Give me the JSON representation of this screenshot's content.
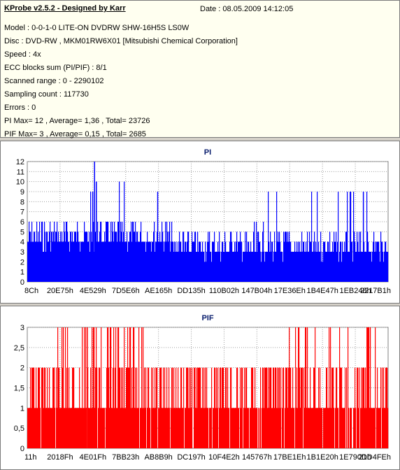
{
  "header": {
    "title": "KProbe v2.5.2 - Designed by Karr",
    "date": "Date : 08.05.2009 14:12:05",
    "lines": [
      "Model : 0-0-1-0 LITE-ON DVDRW SHW-16H5S  LS0W",
      "Disc : DVD-RW , MKM01RW6X01 [Mitsubishi Chemical Corporation]",
      "Speed : 4x",
      "ECC blocks sum (PI/PIF) : 8/1",
      "Scanned range : 0 - 2290102",
      "Sampling count : 117730",
      "Errors : 0",
      "PI Max= 12 , Average= 1,36 , Total= 23726",
      "PIF Max= 3 , Average= 0,15 , Total= 2685"
    ]
  },
  "chart_data": [
    {
      "type": "bar",
      "title": "PI",
      "color": "#0000ff",
      "ylim": [
        0,
        12
      ],
      "yticks": [
        "0",
        "1",
        "2",
        "3",
        "4",
        "5",
        "6",
        "7",
        "8",
        "9",
        "10",
        "11",
        "12"
      ],
      "xticks": [
        "8Ch",
        "20E75h",
        "4E529h",
        "7D5E6h",
        "AE165h",
        "DD135h",
        "110B02h",
        "147B04h",
        "17E36Eh",
        "1B4E47h",
        "1EB248h",
        "2217B1h"
      ],
      "x_range": [
        140,
        2290102
      ],
      "grid": true,
      "profile": [
        {
          "x_frac": 0.0,
          "typical": 4,
          "peak": 6
        },
        {
          "x_frac": 0.18,
          "typical": 4,
          "peak": 9
        },
        {
          "x_frac": 0.185,
          "typical": 5,
          "peak": 12
        },
        {
          "x_frac": 0.19,
          "typical": 4,
          "peak": 10
        },
        {
          "x_frac": 0.36,
          "typical": 4,
          "peak": 9
        },
        {
          "x_frac": 0.4,
          "typical": 3,
          "peak": 6
        },
        {
          "x_frac": 0.93,
          "typical": 3,
          "peak": 9
        },
        {
          "x_frac": 1.0,
          "typical": 3,
          "peak": 5
        }
      ]
    },
    {
      "type": "bar",
      "title": "PIF",
      "color": "#ff0000",
      "ylim": [
        0,
        3
      ],
      "yticks": [
        "0",
        "0,5",
        "1",
        "1,5",
        "2",
        "2,5",
        "3"
      ],
      "xticks": [
        "11h",
        "2018Fh",
        "4E01Fh",
        "7BB23h",
        "AB8B9h",
        "DC197h",
        "10F4E2h",
        "145767h",
        "17BE1Eh",
        "1B1E20h",
        "1E790Dh",
        "21D4FEh"
      ],
      "x_range": [
        17,
        2290102
      ],
      "grid": true,
      "profile": [
        {
          "x_frac": 0.0,
          "typical": 1,
          "peak": 2
        },
        {
          "x_frac": 0.165,
          "typical": 1,
          "peak": 3
        },
        {
          "x_frac": 0.5,
          "typical": 1,
          "peak": 2
        },
        {
          "x_frac": 0.94,
          "typical": 1,
          "peak": 3
        },
        {
          "x_frac": 1.0,
          "typical": 1,
          "peak": 2
        }
      ]
    }
  ]
}
